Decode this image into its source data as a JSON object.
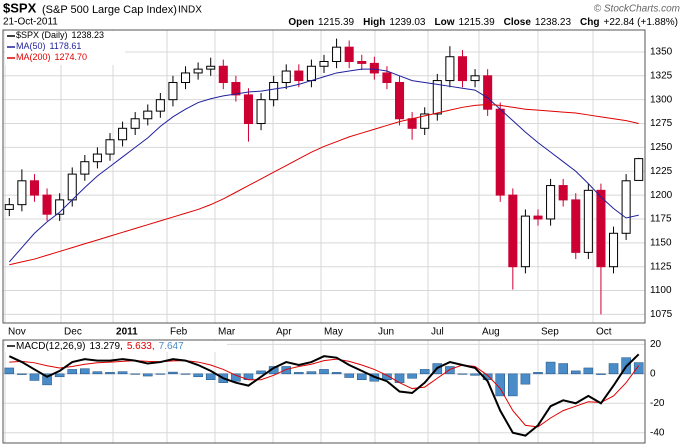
{
  "header": {
    "symbol": "$SPX",
    "name": "(S&P 500 Large Cap Index)",
    "exchange": "INDX",
    "credit": "© StockCharts.com",
    "date": "21-Oct-2011",
    "quote": [
      {
        "label": "Open",
        "value": 1215.39
      },
      {
        "label": "High",
        "value": 1239.03
      },
      {
        "label": "Low",
        "value": 1215.39
      },
      {
        "label": "Close",
        "value": 1238.23
      },
      {
        "label": "Chg",
        "value": "+22.84 (+1.88%)"
      }
    ]
  },
  "chart_data": [
    {
      "type": "candlestick",
      "categories": [
        null,
        null,
        null,
        null,
        null,
        null,
        null,
        null,
        null,
        null,
        null,
        null,
        null,
        null,
        null,
        null,
        null,
        null,
        null,
        null,
        null,
        null,
        null,
        null,
        null,
        null,
        null,
        null,
        null,
        null,
        null,
        null,
        null,
        null,
        null,
        null,
        null,
        null,
        null,
        null,
        null,
        null,
        null,
        null,
        null,
        null,
        null,
        null,
        null,
        null,
        null
      ],
      "xlim": [
        -0.5,
        50.5
      ],
      "xticks": [
        {
          "value": -0.34,
          "label": "Nov"
        },
        {
          "value": 4.11,
          "label": "Dec"
        },
        {
          "value": 8.24,
          "label": "2011",
          "bold": true
        },
        {
          "value": 12.53,
          "label": "Feb"
        },
        {
          "value": 16.34,
          "label": "Mar"
        },
        {
          "value": 20.95,
          "label": "Apr"
        },
        {
          "value": 24.76,
          "label": "May"
        },
        {
          "value": 29.05,
          "label": "Jun"
        },
        {
          "value": 33.26,
          "label": "Jul"
        },
        {
          "value": 37.31,
          "label": "Aug"
        },
        {
          "value": 42.0,
          "label": "Sep"
        },
        {
          "value": 46.37,
          "label": "Oct"
        }
      ],
      "ylim": [
        1066,
        1373
      ],
      "yticks": [
        1075,
        1100,
        1125,
        1150,
        1175,
        1200,
        1225,
        1250,
        1275,
        1300,
        1325,
        1350
      ],
      "grid": true,
      "up_color": "#000000",
      "down_color": "#cc0033",
      "series": [
        {
          "name": "$SPX (Daily)",
          "last_label": "1238.23",
          "color": "#000000",
          "open": [
            1185,
            1190,
            1215,
            1200,
            1180,
            1195,
            1222,
            1235,
            1243,
            1258,
            1270,
            1280,
            1288,
            1300,
            1318,
            1328,
            1332,
            1335,
            1318,
            1305,
            1275,
            1300,
            1318,
            1330,
            1320,
            1335,
            1340,
            1355,
            1340,
            1338,
            1328,
            1318,
            1280,
            1270,
            1285,
            1320,
            1345,
            1320,
            1325,
            1290,
            1200,
            1125,
            1178,
            1175,
            1210,
            1195,
            1140,
            1205,
            1125,
            1160,
            1215.39
          ],
          "high": [
            1197,
            1227,
            1222,
            1207,
            1202,
            1229,
            1242,
            1250,
            1265,
            1277,
            1287,
            1295,
            1307,
            1325,
            1335,
            1339,
            1344,
            1342,
            1325,
            1312,
            1307,
            1325,
            1337,
            1337,
            1342,
            1347,
            1364,
            1362,
            1347,
            1345,
            1335,
            1325,
            1287,
            1292,
            1327,
            1356,
            1352,
            1332,
            1332,
            1297,
            1207,
            1185,
            1185,
            1217,
            1217,
            1202,
            1212,
            1212,
            1167,
            1222,
            1239.03
          ],
          "low": [
            1178,
            1183,
            1193,
            1173,
            1173,
            1188,
            1215,
            1228,
            1236,
            1251,
            1263,
            1273,
            1281,
            1293,
            1311,
            1321,
            1325,
            1311,
            1298,
            1256,
            1268,
            1293,
            1311,
            1313,
            1313,
            1328,
            1333,
            1333,
            1331,
            1321,
            1311,
            1273,
            1258,
            1263,
            1278,
            1313,
            1313,
            1313,
            1283,
            1193,
            1101,
            1118,
            1168,
            1168,
            1188,
            1133,
            1133,
            1075,
            1118,
            1153,
            1215.39
          ],
          "close": [
            1190,
            1215,
            1200,
            1180,
            1195,
            1222,
            1235,
            1243,
            1258,
            1270,
            1280,
            1288,
            1300,
            1318,
            1328,
            1332,
            1335,
            1318,
            1305,
            1275,
            1300,
            1318,
            1330,
            1320,
            1335,
            1340,
            1355,
            1340,
            1338,
            1328,
            1318,
            1280,
            1270,
            1285,
            1320,
            1345,
            1320,
            1325,
            1290,
            1200,
            1125,
            1178,
            1175,
            1210,
            1195,
            1140,
            1205,
            1125,
            1160,
            1215,
            1238.23
          ]
        },
        {
          "name": "MA(50)",
          "last_label": "1178.61",
          "color": "#1f1f9e",
          "values": [
            1130,
            1145,
            1160,
            1172,
            1182,
            1195,
            1208,
            1220,
            1230,
            1240,
            1250,
            1260,
            1272,
            1282,
            1290,
            1297,
            1301,
            1304,
            1306,
            1308,
            1309,
            1311,
            1313,
            1316,
            1320,
            1324,
            1328,
            1330,
            1332,
            1332,
            1330,
            1325,
            1320,
            1318,
            1316,
            1314,
            1312,
            1310,
            1302,
            1290,
            1278,
            1266,
            1255,
            1245,
            1235,
            1225,
            1212,
            1198,
            1186,
            1176,
            1179
          ]
        },
        {
          "name": "MA(200)",
          "last_label": "1274.70",
          "color": "#e00000",
          "values": [
            1127,
            1130,
            1133,
            1137,
            1141,
            1145,
            1149,
            1153,
            1157,
            1161,
            1165,
            1169,
            1173,
            1177,
            1181,
            1185,
            1190,
            1196,
            1203,
            1210,
            1217,
            1224,
            1231,
            1238,
            1245,
            1251,
            1256,
            1261,
            1265,
            1269,
            1273,
            1277,
            1280,
            1283,
            1286,
            1289,
            1292,
            1294,
            1295,
            1294,
            1292,
            1290,
            1289,
            1288,
            1287,
            1286,
            1284,
            1282,
            1280,
            1278,
            1275
          ]
        }
      ]
    },
    {
      "type": "macd",
      "legend": "MACD(12,26,9)",
      "xlim": [
        -0.5,
        50.5
      ],
      "ylim": [
        -47,
        23
      ],
      "yticks": [
        -40,
        -20,
        0,
        20
      ],
      "grid": true,
      "macd": {
        "color": "#000000",
        "label": "13.279,",
        "values": [
          12,
          8,
          3,
          -2,
          2,
          8,
          10,
          9,
          9,
          10,
          9,
          7,
          8,
          10,
          9,
          6,
          2,
          -3,
          -6,
          -8,
          -2,
          4,
          8,
          6,
          8,
          12,
          11,
          6,
          2,
          -2,
          -5,
          -12,
          -13,
          -6,
          4,
          8,
          6,
          4,
          -5,
          -25,
          -40,
          -42,
          -35,
          -22,
          -18,
          -20,
          -15,
          -20,
          -8,
          5,
          13.279
        ]
      },
      "signal": {
        "color": "#e00000",
        "label": "5.633,",
        "values": [
          8,
          8.5,
          7.5,
          5.5,
          4,
          5,
          6.5,
          7.5,
          8,
          8.5,
          9,
          8.5,
          8.2,
          8.8,
          9,
          8,
          6,
          3,
          -1,
          -4,
          -4,
          -1,
          3,
          5,
          6.5,
          9,
          10,
          8.5,
          6,
          3,
          -1,
          -6,
          -10,
          -9,
          -3,
          3,
          6,
          5,
          -1,
          -10,
          -25,
          -35,
          -36,
          -30,
          -25,
          -22,
          -19,
          -19.5,
          -15,
          -6,
          5.633
        ]
      },
      "histogram": {
        "color": "#4a8cc8",
        "label": "7.647",
        "values": [
          4,
          -0.5,
          -4.5,
          -7.5,
          -2,
          3,
          3.5,
          1.5,
          1,
          1.5,
          0,
          -1.5,
          -0.2,
          1.2,
          0,
          -2,
          -4,
          -6,
          -5,
          -4,
          2,
          5,
          5,
          1,
          1.5,
          3,
          1,
          -2.5,
          -4,
          -5,
          -4,
          -6,
          -3,
          3,
          7,
          5,
          0,
          -1,
          -4,
          -15,
          -15,
          -7,
          1,
          8,
          7,
          2,
          4,
          -0.5,
          7,
          11,
          7.647
        ]
      }
    }
  ]
}
